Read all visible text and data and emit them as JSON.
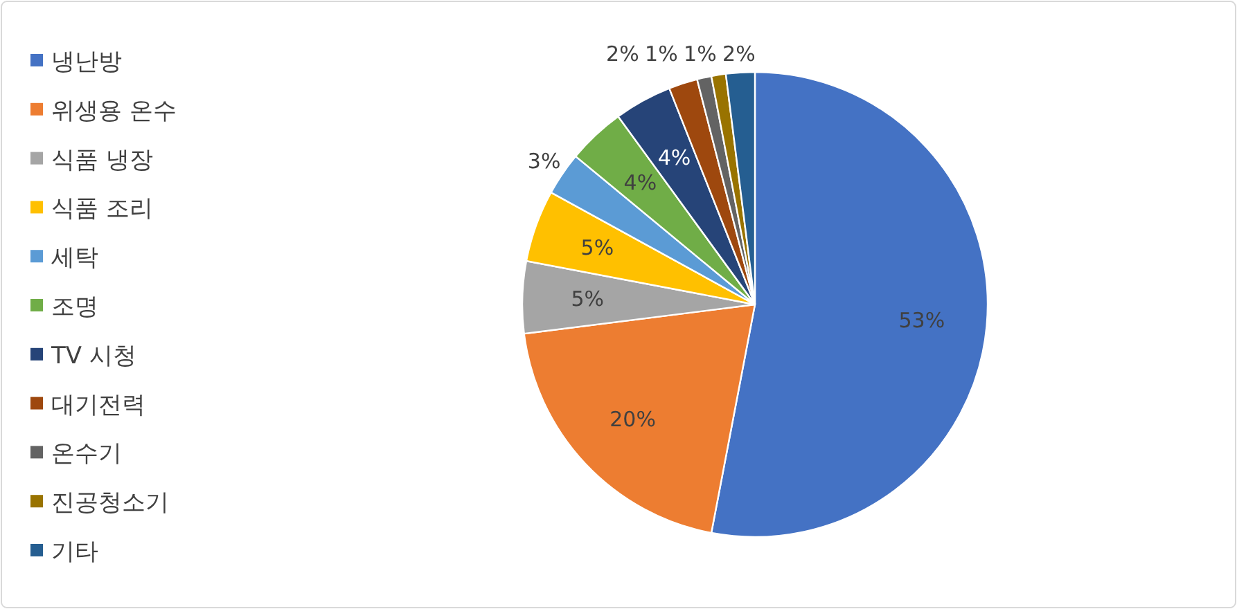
{
  "chart_data": {
    "type": "pie",
    "legend": "left",
    "data_labels": false,
    "categories": [
      "냉난방",
      "위생용 온수",
      "식품 냉장",
      "식품 조리",
      "세탁",
      "조명",
      "TV 시청",
      "대기전력",
      "온수기",
      "진공청소기",
      "기타"
    ],
    "values": [
      53,
      20,
      5,
      5,
      3,
      4,
      4,
      2,
      1,
      1,
      2
    ],
    "value_labels": [
      "53%",
      "20%",
      "5%",
      "5%",
      "3%",
      "4%",
      "4%",
      "2%",
      "1%",
      "1%",
      "2%"
    ],
    "colors": [
      "#4472c4",
      "#ed7d31",
      "#a5a5a5",
      "#ffc000",
      "#5b9bd5",
      "#70ad47",
      "#264478",
      "#9e480e",
      "#636363",
      "#997300",
      "#255e91"
    ]
  }
}
